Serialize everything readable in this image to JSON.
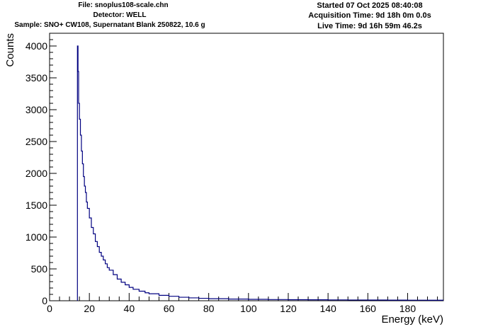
{
  "header": {
    "file": "File: snoplus108-scale.chn",
    "detector": "Detector: WELL",
    "sample": "Sample: SNO+ CW108, Supernatant Blank 250822, 10.6 g",
    "started": "Started 07 Oct 2025 08:40:08",
    "acquisition": "Acquisition Time: 9d 18h 0m 0.0s",
    "live": "Live Time: 9d 16h 59m 46.2s"
  },
  "chart_data": {
    "type": "line",
    "title": "",
    "xlabel": "Energy (keV)",
    "ylabel": "Counts",
    "xlim": [
      0,
      198
    ],
    "ylim": [
      0,
      4200
    ],
    "x_ticks": [
      0,
      20,
      40,
      60,
      80,
      100,
      120,
      140,
      160,
      180
    ],
    "y_ticks": [
      0,
      500,
      1000,
      1500,
      2000,
      2500,
      3000,
      3500,
      4000
    ],
    "grid": false,
    "legend": "none",
    "line_color": "#000080",
    "series": [
      {
        "x": [
          14,
          14.3,
          14.6,
          15,
          15.5,
          16,
          16.5,
          17,
          17.5,
          18,
          18.5,
          19,
          20,
          21,
          22,
          23,
          24,
          25,
          26,
          27,
          28,
          29,
          30,
          32,
          34,
          36,
          38,
          40,
          42,
          45,
          48,
          50,
          55,
          60,
          65,
          70,
          75,
          80,
          90,
          100,
          110,
          120,
          130,
          140,
          150,
          160,
          170,
          180,
          190,
          198
        ],
        "values": [
          4000,
          3600,
          3100,
          2850,
          2600,
          2350,
          2150,
          1950,
          1800,
          1700,
          1550,
          1450,
          1300,
          1150,
          1050,
          930,
          850,
          760,
          700,
          640,
          580,
          520,
          480,
          410,
          340,
          290,
          250,
          210,
          180,
          150,
          125,
          110,
          85,
          70,
          55,
          45,
          38,
          32,
          26,
          22,
          19,
          17,
          15,
          13,
          12,
          11,
          10,
          9,
          8,
          8
        ]
      }
    ]
  }
}
